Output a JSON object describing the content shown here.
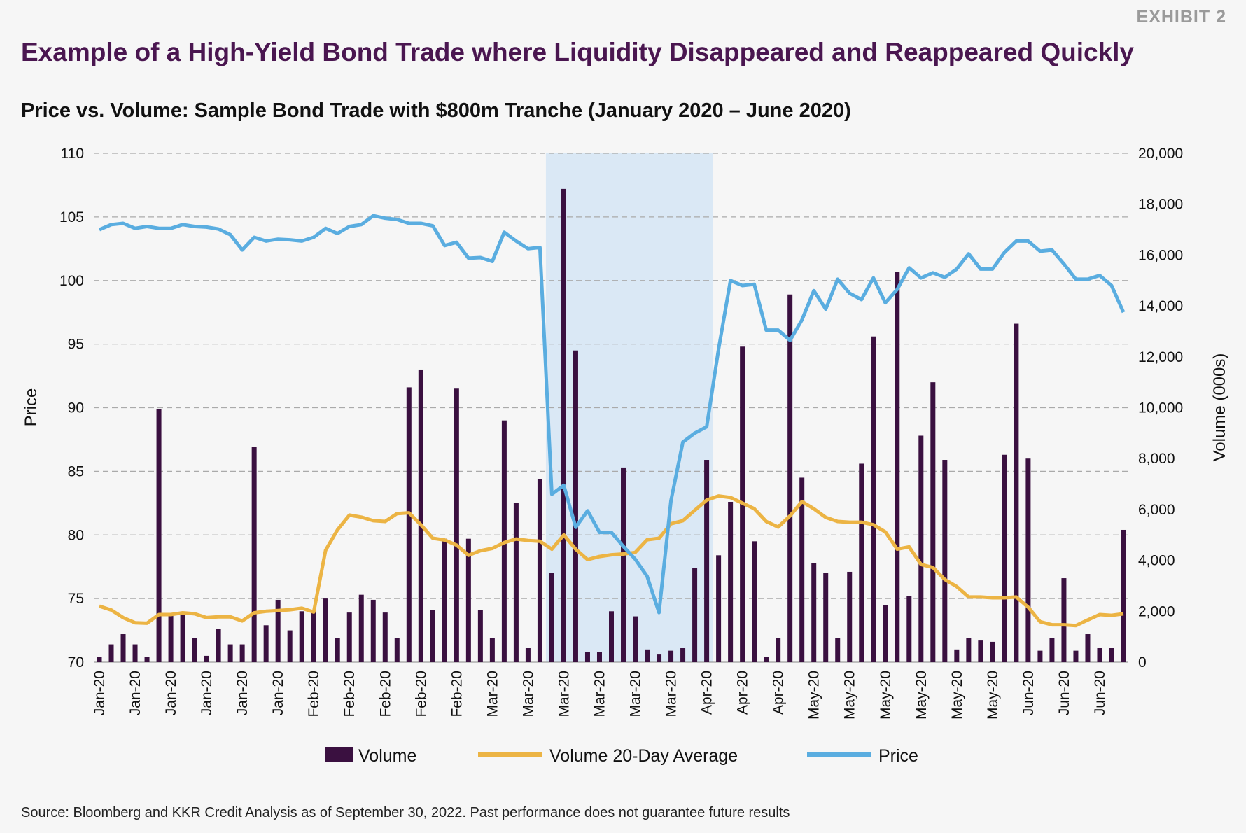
{
  "header": {
    "exhibit": "EXHIBIT 2",
    "title": "Example of a High-Yield Bond Trade where Liquidity Disappeared and Reappeared Quickly",
    "subtitle": "Price vs. Volume: Sample Bond Trade with $800m Tranche (January 2020 – June 2020)"
  },
  "footer": {
    "source": "Source: Bloomberg and KKR Credit Analysis as of September 30, 2022. Past performance does not guarantee future results"
  },
  "chart_data": {
    "type": "bar+line",
    "ylabel_left": "Price",
    "ylabel_right": "Volume (000s)",
    "ylim_left": [
      70,
      110
    ],
    "yticks_left": [
      "110",
      "105",
      "100",
      "95",
      "90",
      "85",
      "80",
      "75",
      "70"
    ],
    "ylim_right": [
      0,
      20000
    ],
    "yticks_right": [
      "20,000",
      "18,000",
      "16,000",
      "14,000",
      "12,000",
      "10,000",
      "8,000",
      "6,000",
      "4,000",
      "2,000",
      "0"
    ],
    "xtick_labels": [
      "Jan-20",
      "Jan-20",
      "Jan-20",
      "Jan-20",
      "Jan-20",
      "Jan-20",
      "Feb-20",
      "Feb-20",
      "Feb-20",
      "Feb-20",
      "Feb-20",
      "Mar-20",
      "Mar-20",
      "Mar-20",
      "Mar-20",
      "Mar-20",
      "Mar-20",
      "Apr-20",
      "Apr-20",
      "Apr-20",
      "May-20",
      "May-20",
      "May-20",
      "May-20",
      "May-20",
      "May-20",
      "Jun-20",
      "Jun-20",
      "Jun-20"
    ],
    "xtick_every": 3,
    "grid": "horizontal dashed",
    "legend_placement": "bottom",
    "shaded_period_bar_index": [
      37.5,
      51.5
    ],
    "colors": {
      "volume": "#3a1040",
      "average": "#ecb444",
      "price": "#5aade0",
      "shade": "#dae8f5"
    },
    "series": [
      {
        "name": "Volume",
        "axis": "right",
        "kind": "bar",
        "values": [
          200,
          700,
          1100,
          700,
          200,
          9950,
          1900,
          1900,
          950,
          250,
          1300,
          700,
          700,
          8450,
          1450,
          2450,
          1250,
          2000,
          2000,
          2500,
          950,
          1950,
          2650,
          2450,
          1950,
          950,
          10800,
          11500,
          2050,
          4850,
          10750,
          4850,
          2050,
          950,
          9500,
          6250,
          550,
          7200,
          3500,
          18600,
          12250,
          400,
          400,
          2000,
          7650,
          1800,
          500,
          300,
          450,
          550,
          3700,
          7950,
          4200,
          6300,
          12400,
          4750,
          200,
          950,
          14450,
          7250,
          3900,
          3500,
          950,
          3550,
          7800,
          12800,
          2250,
          15350,
          2600,
          8900,
          11000,
          7950,
          500,
          950,
          850,
          800,
          8150,
          13300,
          8000,
          450,
          950,
          3300,
          450,
          1100,
          550,
          550,
          5200
        ]
      },
      {
        "name": "Volume 20-Day Average",
        "axis": "right",
        "kind": "line",
        "values": [
          2200,
          2050,
          1750,
          1550,
          1530,
          1870,
          1870,
          1940,
          1900,
          1750,
          1780,
          1780,
          1620,
          1940,
          2000,
          2030,
          2060,
          2120,
          1970,
          4400,
          5200,
          5780,
          5700,
          5560,
          5530,
          5840,
          5870,
          5400,
          4870,
          4800,
          4600,
          4200,
          4380,
          4470,
          4700,
          4840,
          4780,
          4750,
          4440,
          5000,
          4440,
          4030,
          4150,
          4220,
          4250,
          4310,
          4810,
          4870,
          5440,
          5560,
          5970,
          6370,
          6530,
          6470,
          6250,
          6030,
          5530,
          5310,
          5750,
          6310,
          6030,
          5690,
          5530,
          5500,
          5500,
          5400,
          5120,
          4440,
          4530,
          3840,
          3720,
          3250,
          2970,
          2560,
          2560,
          2530,
          2530,
          2560,
          2160,
          1590,
          1470,
          1470,
          1440,
          1660,
          1870,
          1840,
          1900
        ]
      },
      {
        "name": "Price",
        "axis": "left",
        "kind": "line",
        "values": [
          104.0,
          104.4,
          104.5,
          104.1,
          104.25,
          104.1,
          104.1,
          104.4,
          104.25,
          104.2,
          104.05,
          103.6,
          102.4,
          103.4,
          103.1,
          103.25,
          103.2,
          103.1,
          103.4,
          104.1,
          103.7,
          104.25,
          104.4,
          105.1,
          104.9,
          104.8,
          104.5,
          104.5,
          104.3,
          102.75,
          103.0,
          101.75,
          101.8,
          101.5,
          103.8,
          103.1,
          102.5,
          102.6,
          83.2,
          83.9,
          80.6,
          81.9,
          80.2,
          80.2,
          79.1,
          78.1,
          76.75,
          73.9,
          82.7,
          87.3,
          88.0,
          88.5,
          94.6,
          100.0,
          99.6,
          99.7,
          96.1,
          96.1,
          95.3,
          96.9,
          99.2,
          97.75,
          100.1,
          99.0,
          98.5,
          100.2,
          98.25,
          99.3,
          101.0,
          100.2,
          100.6,
          100.25,
          100.9,
          102.1,
          100.9,
          100.9,
          102.2,
          103.1,
          103.1,
          102.3,
          102.4,
          101.3,
          100.1,
          100.1,
          100.4,
          99.6,
          97.5
        ]
      }
    ]
  }
}
